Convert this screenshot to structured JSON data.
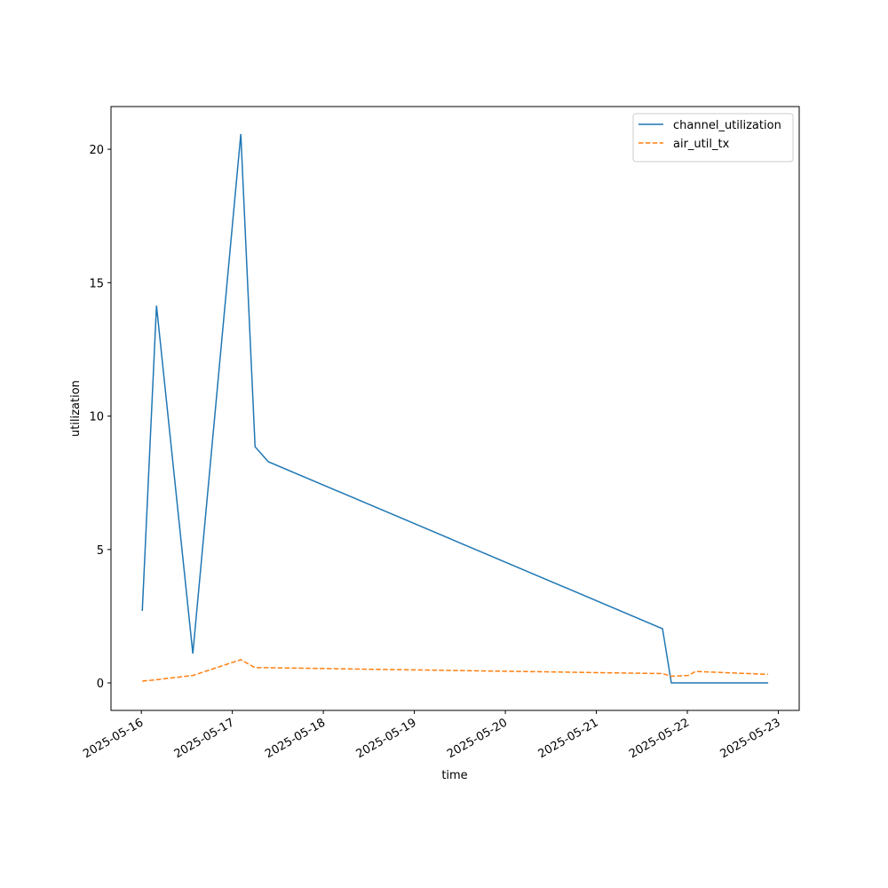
{
  "chart_data": {
    "type": "line",
    "xlabel": "time",
    "ylabel": "utilization",
    "x": [
      "2025-05-16T00:15",
      "2025-05-16T04:00",
      "2025-05-16T13:35",
      "2025-05-17T02:14",
      "2025-05-17T06:00",
      "2025-05-17T09:29",
      "2025-05-21T17:27",
      "2025-05-21T19:47",
      "2025-05-22T00:15",
      "2025-05-22T02:10",
      "2025-05-22T21:19"
    ],
    "series": [
      {
        "name": "channel_utilization",
        "color": "#1f77b4",
        "linestyle": "solid",
        "values": [
          2.7,
          14.14,
          1.1,
          20.57,
          8.85,
          8.29,
          2.03,
          0.0,
          0.0,
          0.0,
          0.0
        ]
      },
      {
        "name": "air_util_tx",
        "color": "#ff7f0e",
        "linestyle": "dashed",
        "values": [
          0.07,
          0.12,
          0.28,
          0.87,
          0.57,
          0.57,
          0.35,
          0.25,
          0.28,
          0.43,
          0.32
        ]
      }
    ],
    "xlim": [
      "2025-05-15T16:00",
      "2025-05-23T05:30"
    ],
    "xticks": [
      "2025-05-16",
      "2025-05-17",
      "2025-05-18",
      "2025-05-19",
      "2025-05-20",
      "2025-05-21",
      "2025-05-22",
      "2025-05-23"
    ],
    "ylim": [
      -1.03,
      21.6
    ],
    "yticks": [
      0,
      5,
      10,
      15,
      20
    ],
    "grid": false,
    "legend": "upper right"
  }
}
